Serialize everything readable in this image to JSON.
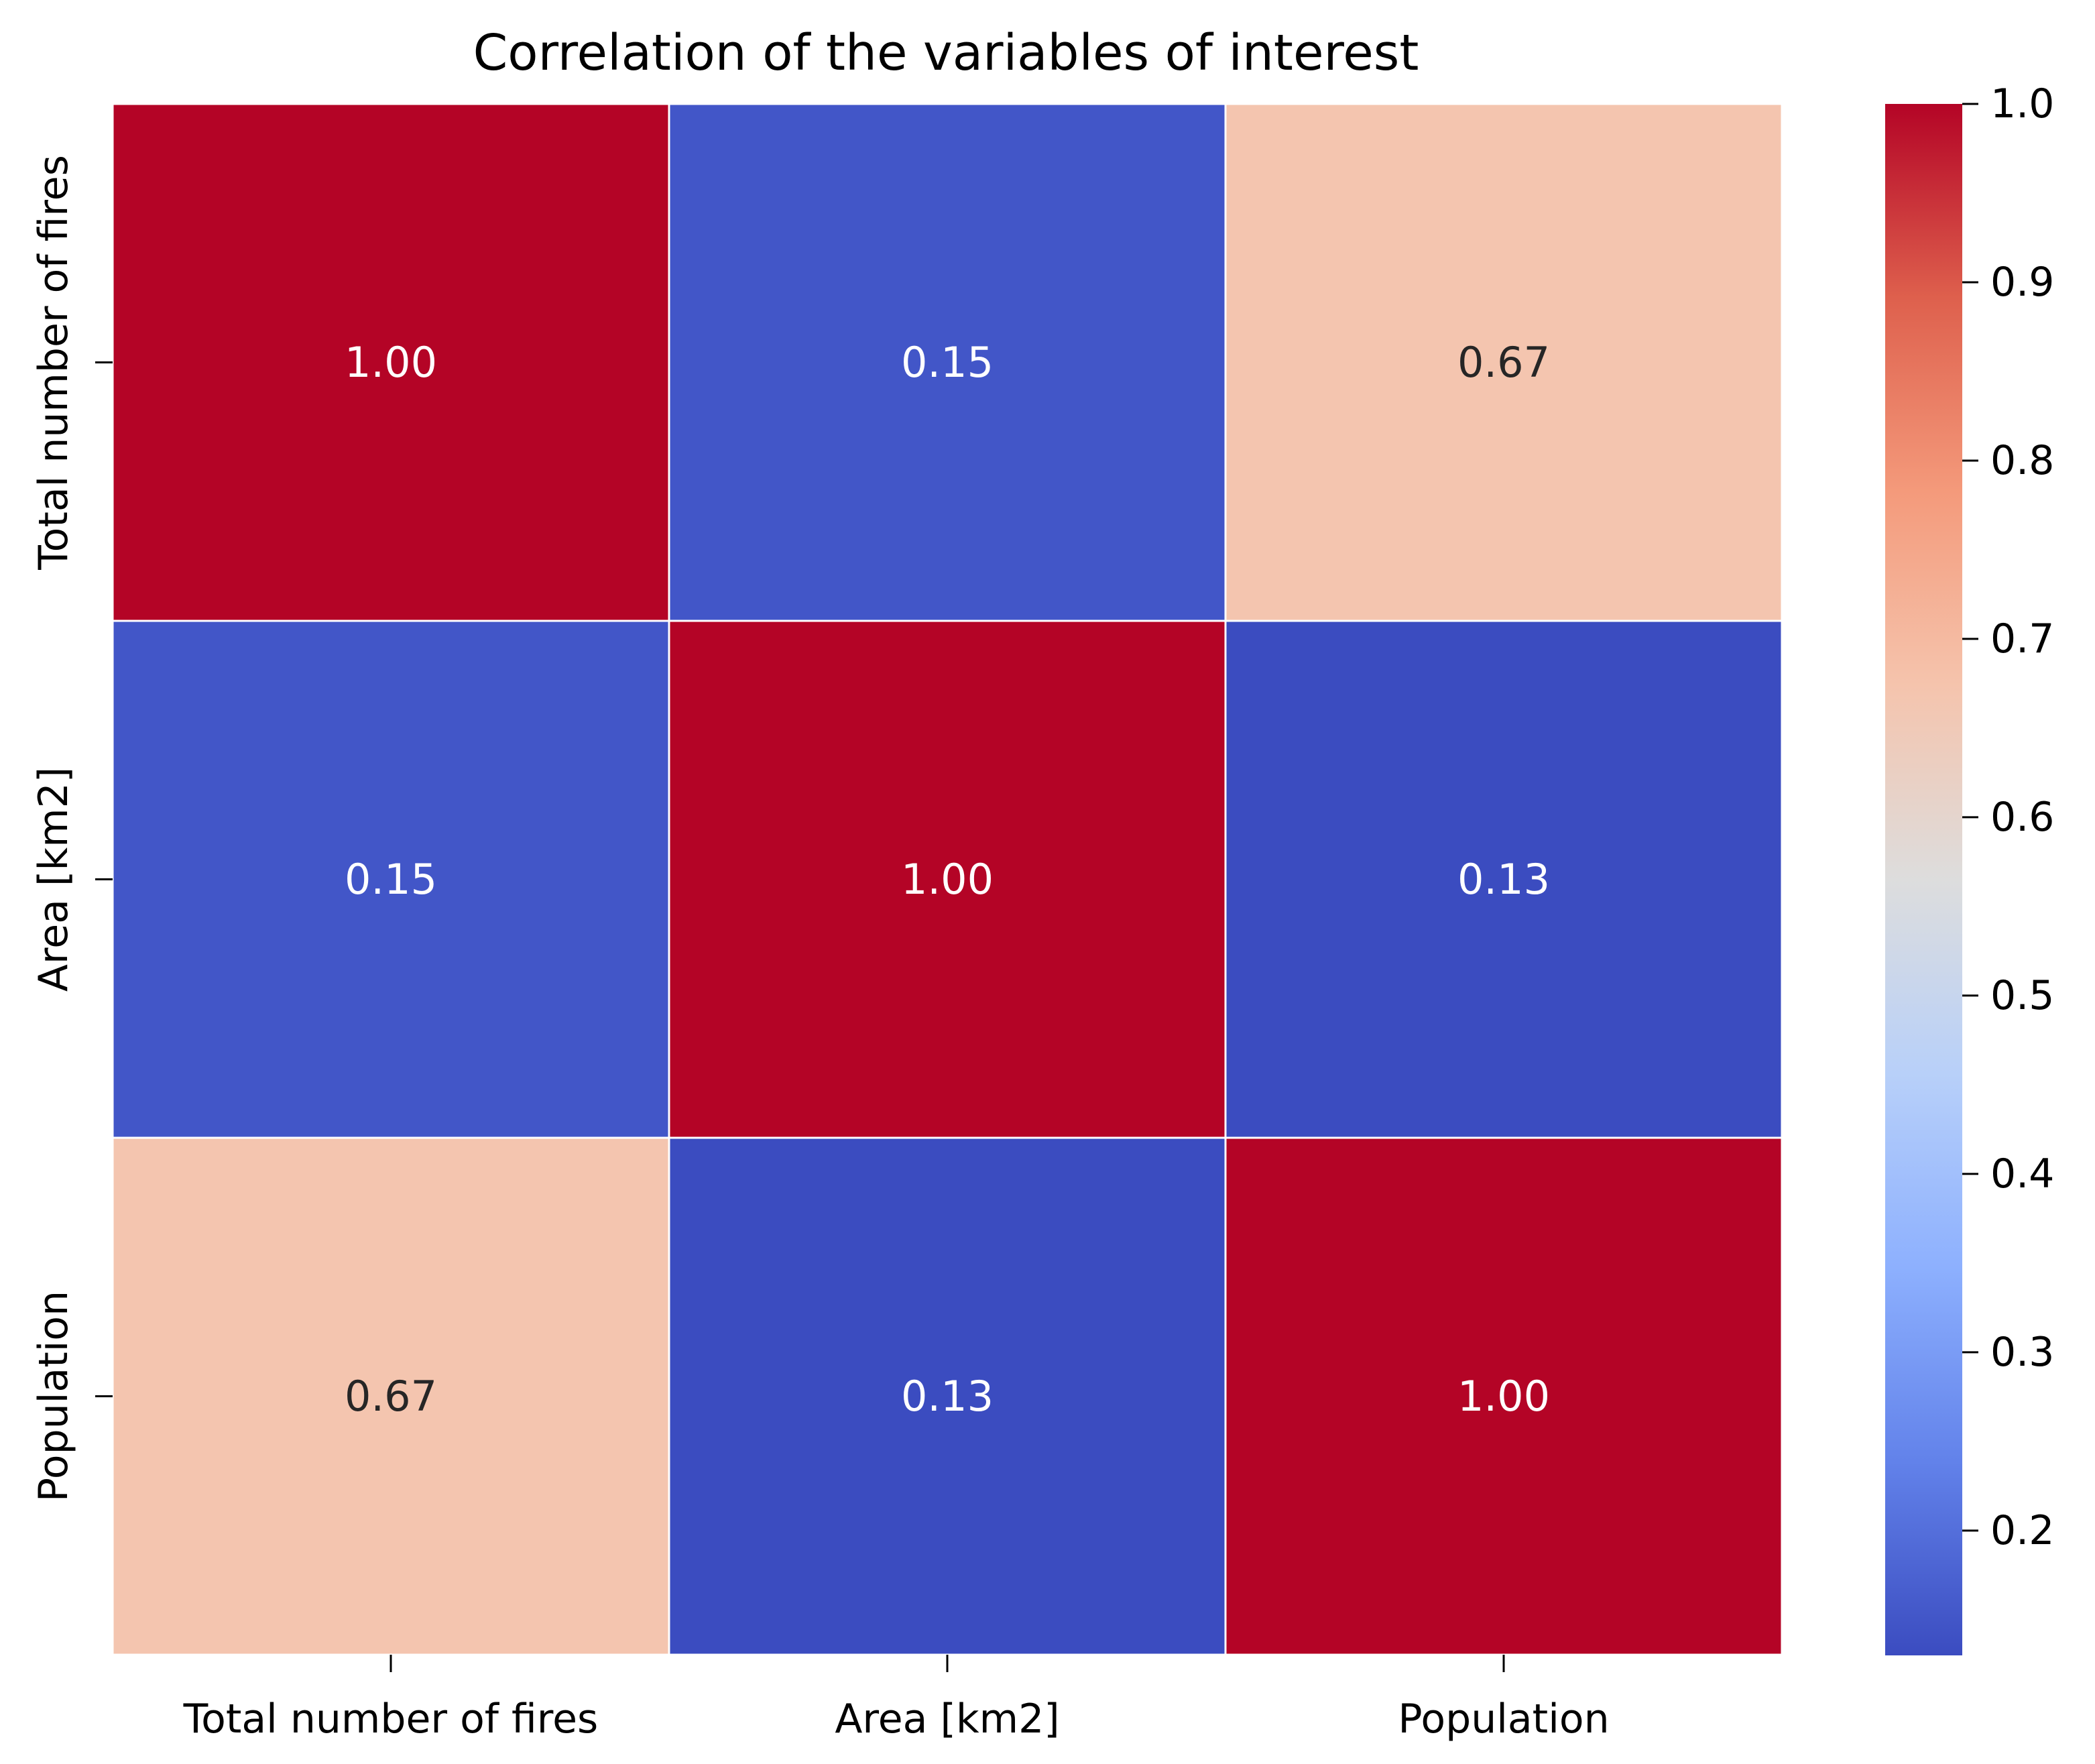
{
  "chart_data": {
    "type": "heatmap",
    "title": "Correlation of the variables of interest",
    "xlabel": "",
    "ylabel": "",
    "categories": [
      "Total number of fires",
      "Area [km2]",
      "Population"
    ],
    "values": [
      [
        1.0,
        0.15,
        0.67
      ],
      [
        0.15,
        1.0,
        0.13
      ],
      [
        0.67,
        0.13,
        1.0
      ]
    ],
    "value_labels": [
      [
        "1.00",
        "0.15",
        "0.67"
      ],
      [
        "0.15",
        "1.00",
        "0.13"
      ],
      [
        "0.67",
        "0.13",
        "1.00"
      ]
    ],
    "colormap": "coolwarm",
    "colorbar": {
      "vmin": 0.13,
      "vmax": 1.0,
      "ticks": [
        0.2,
        0.3,
        0.4,
        0.5,
        0.6,
        0.7,
        0.8,
        0.9,
        1.0
      ],
      "tick_labels": [
        "0.2",
        "0.3",
        "0.4",
        "0.5",
        "0.6",
        "0.7",
        "0.8",
        "0.9",
        "1.0"
      ]
    },
    "colors": {
      "dark_text": "#262626",
      "light_text": "#ffffff",
      "gridline": "#ffffff"
    },
    "grid": false,
    "legend": "right colorbar"
  }
}
